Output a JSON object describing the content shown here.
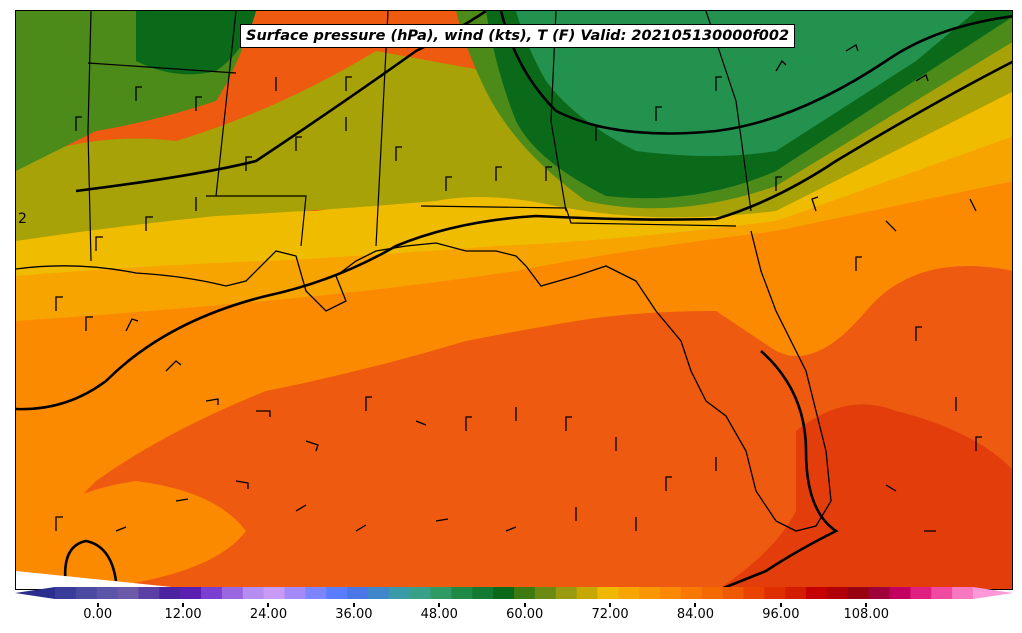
{
  "title": "Surface pressure (hPa), wind (kts), T (F) Valid: 202105130000f002",
  "isobar_label": "2",
  "colorbar": {
    "ticks": [
      "0.00",
      "12.00",
      "24.00",
      "36.00",
      "48.00",
      "60.00",
      "72.00",
      "84.00",
      "96.00",
      "108.00"
    ],
    "tick_values": [
      0,
      12,
      24,
      36,
      48,
      60,
      72,
      84,
      96,
      108
    ],
    "min": -6,
    "max": 123,
    "step": 3,
    "colors": [
      "#2b2e8f",
      "#3a3c99",
      "#4a4aa3",
      "#5a55a8",
      "#6a5aa8",
      "#5a3fa5",
      "#4b23a0",
      "#5a1fb0",
      "#7b3fd0",
      "#9a66e0",
      "#b58cf0",
      "#c79af5",
      "#a48af8",
      "#7d84ff",
      "#5a7cff",
      "#4a76e6",
      "#3f87c8",
      "#3a9aa8",
      "#37a087",
      "#2f9a64",
      "#1f8a45",
      "#147a32",
      "#0b6a1a",
      "#3d7b10",
      "#6b8a12",
      "#9a9a10",
      "#c7a800",
      "#f0b800",
      "#f7a600",
      "#fa9600",
      "#fb8800",
      "#f97800",
      "#f46a00",
      "#ee5a00",
      "#e84400",
      "#df2e00",
      "#d41c00",
      "#c40000",
      "#b00008",
      "#980010",
      "#a0003a",
      "#c20060",
      "#e02080",
      "#f04aa0",
      "#f878c0",
      "#ff98d8"
    ]
  },
  "legend_colors": {
    "forest": "#0b6a1a",
    "green": "#24924f",
    "olive_green": "#4c8a1a",
    "olive": "#a7a207",
    "yellow": "#f0bc00",
    "light_orange": "#f7a300",
    "orange": "#fb8a00",
    "red_orange": "#ee5a10",
    "red": "#e23d0b"
  },
  "map_elements": [
    "state-borders",
    "coastline",
    "isobars",
    "wind-barbs",
    "temperature-fill"
  ]
}
